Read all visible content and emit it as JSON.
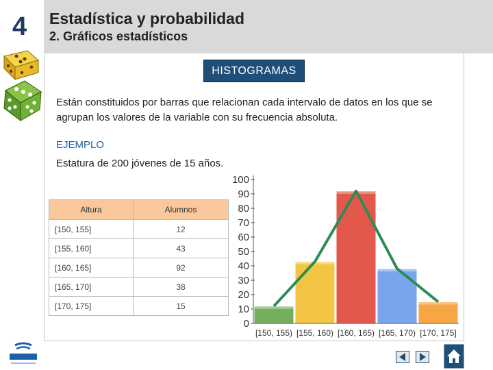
{
  "header": {
    "unit_number": "4",
    "title": "Estadística y probabilidad",
    "subtitle": "2. Gráficos estadísticos"
  },
  "section": {
    "label": "HISTOGRAMAS",
    "description": "Están constituidos por barras que relacionan cada intervalo de datos en los que se agrupan los valores de la variable con su frecuencia absoluta.",
    "example_label": "EJEMPLO",
    "example_text": "Estatura de 200 jóvenes de 15 años."
  },
  "table": {
    "headers": [
      "Altura",
      "Alumnos"
    ],
    "rows": [
      [
        "[150, 155]",
        "12"
      ],
      [
        "[155, 160]",
        "43"
      ],
      [
        "[160, 165]",
        "92"
      ],
      [
        "[165, 170]",
        "38"
      ],
      [
        "[170, 175]",
        "15"
      ]
    ]
  },
  "chart_data": {
    "type": "bar",
    "categories": [
      "[150, 155)",
      "[155, 160)",
      "[160, 165)",
      "[165, 170)",
      "[170, 175]"
    ],
    "values": [
      12,
      43,
      92,
      38,
      15
    ],
    "overlay": "frequency-polygon",
    "ylim": [
      0,
      100
    ],
    "yticks": [
      0,
      10,
      20,
      30,
      40,
      50,
      60,
      70,
      80,
      90,
      100
    ],
    "grid": false,
    "bar_colors": [
      "#6aa84f",
      "#f1c232",
      "#e04b3c",
      "#6d9eeb",
      "#f6a035"
    ],
    "polygon_color": "#2e8b57"
  },
  "icons": {
    "dice_1": "dice-icon",
    "dice_2": "dice-icon",
    "logo": "editex-logo",
    "prev": "previous-arrow-icon",
    "next": "next-arrow-icon",
    "home": "home-icon"
  }
}
